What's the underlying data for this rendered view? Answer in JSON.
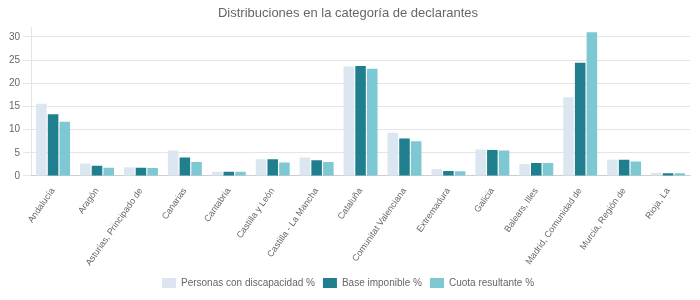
{
  "chart_data": {
    "type": "bar",
    "title": "Distribuciones en la categoría de declarantes",
    "categories": [
      "Andalucía",
      "Aragón",
      "Asturias, Principado de",
      "Canarias",
      "Cantabria",
      "Castilla y León",
      "Castilla - La Mancha",
      "Cataluña",
      "Comunitat Valenciana",
      "Extremadura",
      "Galicia",
      "Balears, Illes",
      "Madrid, Comunidad de",
      "Murcia, Región de",
      "Rioja, La"
    ],
    "series": [
      {
        "name": "Personas con discapacidad %",
        "color": "#dce6f1",
        "values": [
          15.6,
          2.7,
          1.9,
          5.5,
          0.9,
          3.6,
          4.0,
          23.6,
          9.3,
          1.5,
          5.7,
          2.6,
          17.0,
          3.5,
          0.7
        ]
      },
      {
        "name": "Base imponible %",
        "color": "#1f7f8e",
        "values": [
          13.3,
          2.2,
          1.8,
          4.0,
          0.9,
          3.6,
          3.4,
          23.7,
          8.1,
          1.1,
          5.6,
          2.8,
          24.4,
          3.5,
          0.6
        ]
      },
      {
        "name": "Cuota resultante %",
        "color": "#7ec8d4",
        "values": [
          11.7,
          1.8,
          1.7,
          3.0,
          0.9,
          2.9,
          3.0,
          23.1,
          7.5,
          1.0,
          5.5,
          2.8,
          31.0,
          3.1,
          0.6
        ]
      }
    ],
    "ylim": [
      0,
      32
    ],
    "yticks": [
      0,
      5,
      10,
      15,
      20,
      25,
      30
    ],
    "grid": true,
    "legend": "bottom"
  }
}
